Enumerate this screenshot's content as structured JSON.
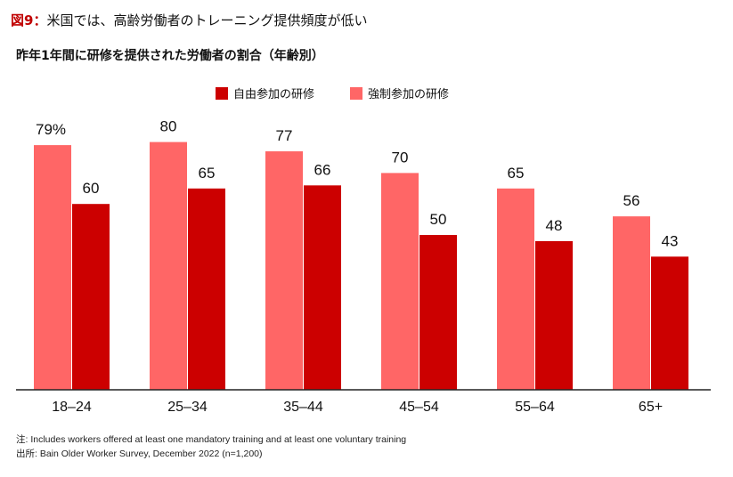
{
  "header": {
    "figure_label": "図9",
    "separator": "：",
    "title": "米国では、高齢労働者のトレーニング提供頻度が低い",
    "subtitle": "昨年1年間に研修を提供された労働者の割合（年齢別）"
  },
  "colors": {
    "accent": "#c00000",
    "voluntary": "#cc0000",
    "mandatory": "#ff6666",
    "axis": "#222222"
  },
  "chart_data": {
    "type": "bar",
    "title": "昨年1年間に研修を提供された労働者の割合（年齢別）",
    "categories": [
      "18–24",
      "25–34",
      "35–44",
      "45–54",
      "55–64",
      "65+"
    ],
    "series": [
      {
        "name": "強制参加の研修",
        "values": [
          79,
          80,
          77,
          70,
          65,
          56
        ],
        "color": "#ff6666"
      },
      {
        "name": "自由参加の研修",
        "values": [
          60,
          65,
          66,
          50,
          48,
          43
        ],
        "color": "#cc0000"
      }
    ],
    "data_labels": [
      [
        "79%",
        "80",
        "77",
        "70",
        "65",
        "56"
      ],
      [
        "60",
        "65",
        "66",
        "50",
        "48",
        "43"
      ]
    ],
    "legend": [
      "自由参加の研修",
      "強制参加の研修"
    ],
    "legend_position": "top-center",
    "ylim": [
      0,
      100
    ],
    "grid": false,
    "xlabel": "",
    "ylabel": ""
  },
  "footnotes": {
    "note": "注: Includes workers offered at least one mandatory training and at least one voluntary training",
    "source": "出所: Bain Older Worker Survey, December 2022 (n=1,200)"
  }
}
